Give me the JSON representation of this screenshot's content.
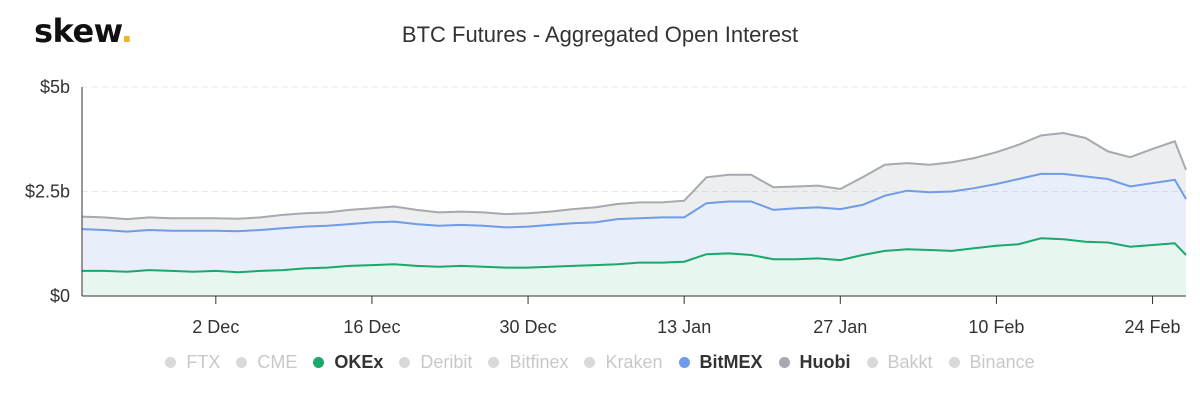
{
  "brand": {
    "name": "skew",
    "dot": "."
  },
  "colors": {
    "okex": "#1aa86b",
    "bitmex": "#6f9be8",
    "huobi": "#a6a9ad",
    "inactive": "#d9d9d9",
    "grid": "#e8e8e8",
    "axis": "#333333"
  },
  "chart_data": {
    "type": "area",
    "title": "BTC Futures - Aggregated Open Interest",
    "xlabel": "",
    "ylabel": "",
    "ylim": [
      0,
      5
    ],
    "y_ticks": [
      {
        "value": 0,
        "label": "$0"
      },
      {
        "value": 2.5,
        "label": "$2.5b"
      },
      {
        "value": 5,
        "label": "$5b"
      }
    ],
    "x_ticks": [
      "2 Dec",
      "16 Dec",
      "30 Dec",
      "13 Jan",
      "27 Jan",
      "10 Feb",
      "24 Feb"
    ],
    "x_start_date": "2019-11-20",
    "x_end_date": "2020-02-27",
    "stacked": true,
    "grid": true,
    "legend_position": "bottom",
    "legend": [
      {
        "name": "FTX",
        "active": false
      },
      {
        "name": "CME",
        "active": false
      },
      {
        "name": "OKEx",
        "active": true,
        "color_key": "okex"
      },
      {
        "name": "Deribit",
        "active": false
      },
      {
        "name": "Bitfinex",
        "active": false
      },
      {
        "name": "Kraken",
        "active": false
      },
      {
        "name": "BitMEX",
        "active": true,
        "color_key": "bitmex"
      },
      {
        "name": "Huobi",
        "active": true,
        "color_key": "huobi"
      },
      {
        "name": "Bakkt",
        "active": false
      },
      {
        "name": "Binance",
        "active": false
      }
    ],
    "series": [
      {
        "name": "OKEx",
        "x": [
          "2019-11-20",
          "2019-11-22",
          "2019-11-24",
          "2019-11-26",
          "2019-11-28",
          "2019-11-30",
          "2019-12-02",
          "2019-12-04",
          "2019-12-06",
          "2019-12-08",
          "2019-12-10",
          "2019-12-12",
          "2019-12-14",
          "2019-12-16",
          "2019-12-18",
          "2019-12-20",
          "2019-12-22",
          "2019-12-24",
          "2019-12-26",
          "2019-12-28",
          "2019-12-30",
          "2020-01-01",
          "2020-01-03",
          "2020-01-05",
          "2020-01-07",
          "2020-01-09",
          "2020-01-11",
          "2020-01-13",
          "2020-01-15",
          "2020-01-17",
          "2020-01-19",
          "2020-01-21",
          "2020-01-23",
          "2020-01-25",
          "2020-01-27",
          "2020-01-29",
          "2020-01-31",
          "2020-02-02",
          "2020-02-04",
          "2020-02-06",
          "2020-02-08",
          "2020-02-10",
          "2020-02-12",
          "2020-02-14",
          "2020-02-16",
          "2020-02-18",
          "2020-02-20",
          "2020-02-22",
          "2020-02-24",
          "2020-02-26",
          "2020-02-27"
        ],
        "values": [
          0.6,
          0.6,
          0.58,
          0.62,
          0.6,
          0.58,
          0.6,
          0.57,
          0.6,
          0.62,
          0.66,
          0.68,
          0.72,
          0.74,
          0.76,
          0.72,
          0.7,
          0.72,
          0.7,
          0.68,
          0.68,
          0.7,
          0.72,
          0.74,
          0.76,
          0.8,
          0.8,
          0.82,
          1.0,
          1.02,
          0.98,
          0.88,
          0.88,
          0.9,
          0.86,
          0.98,
          1.08,
          1.12,
          1.1,
          1.08,
          1.14,
          1.2,
          1.24,
          1.38,
          1.36,
          1.3,
          1.28,
          1.18,
          1.22,
          1.26,
          0.98
        ]
      },
      {
        "name": "BitMEX",
        "x": [
          "2019-11-20",
          "2019-11-22",
          "2019-11-24",
          "2019-11-26",
          "2019-11-28",
          "2019-11-30",
          "2019-12-02",
          "2019-12-04",
          "2019-12-06",
          "2019-12-08",
          "2019-12-10",
          "2019-12-12",
          "2019-12-14",
          "2019-12-16",
          "2019-12-18",
          "2019-12-20",
          "2019-12-22",
          "2019-12-24",
          "2019-12-26",
          "2019-12-28",
          "2019-12-30",
          "2020-01-01",
          "2020-01-03",
          "2020-01-05",
          "2020-01-07",
          "2020-01-09",
          "2020-01-11",
          "2020-01-13",
          "2020-01-15",
          "2020-01-17",
          "2020-01-19",
          "2020-01-21",
          "2020-01-23",
          "2020-01-25",
          "2020-01-27",
          "2020-01-29",
          "2020-01-31",
          "2020-02-02",
          "2020-02-04",
          "2020-02-06",
          "2020-02-08",
          "2020-02-10",
          "2020-02-12",
          "2020-02-14",
          "2020-02-16",
          "2020-02-18",
          "2020-02-20",
          "2020-02-22",
          "2020-02-24",
          "2020-02-26",
          "2020-02-27"
        ],
        "values": [
          1.0,
          0.98,
          0.96,
          0.96,
          0.96,
          0.98,
          0.96,
          0.98,
          0.98,
          1.0,
          1.0,
          1.0,
          1.0,
          1.02,
          1.02,
          1.0,
          0.98,
          0.98,
          0.98,
          0.96,
          0.98,
          1.0,
          1.02,
          1.02,
          1.08,
          1.06,
          1.08,
          1.06,
          1.22,
          1.24,
          1.28,
          1.18,
          1.22,
          1.22,
          1.22,
          1.2,
          1.32,
          1.4,
          1.38,
          1.42,
          1.44,
          1.48,
          1.56,
          1.54,
          1.56,
          1.56,
          1.52,
          1.44,
          1.48,
          1.52,
          1.34
        ]
      },
      {
        "name": "Huobi",
        "x": [
          "2019-11-20",
          "2019-11-22",
          "2019-11-24",
          "2019-11-26",
          "2019-11-28",
          "2019-11-30",
          "2019-12-02",
          "2019-12-04",
          "2019-12-06",
          "2019-12-08",
          "2019-12-10",
          "2019-12-12",
          "2019-12-14",
          "2019-12-16",
          "2019-12-18",
          "2019-12-20",
          "2019-12-22",
          "2019-12-24",
          "2019-12-26",
          "2019-12-28",
          "2019-12-30",
          "2020-01-01",
          "2020-01-03",
          "2020-01-05",
          "2020-01-07",
          "2020-01-09",
          "2020-01-11",
          "2020-01-13",
          "2020-01-15",
          "2020-01-17",
          "2020-01-19",
          "2020-01-21",
          "2020-01-23",
          "2020-01-25",
          "2020-01-27",
          "2020-01-29",
          "2020-01-31",
          "2020-02-02",
          "2020-02-04",
          "2020-02-06",
          "2020-02-08",
          "2020-02-10",
          "2020-02-12",
          "2020-02-14",
          "2020-02-16",
          "2020-02-18",
          "2020-02-20",
          "2020-02-22",
          "2020-02-24",
          "2020-02-26",
          "2020-02-27"
        ],
        "values": [
          0.3,
          0.3,
          0.3,
          0.3,
          0.3,
          0.3,
          0.3,
          0.3,
          0.3,
          0.32,
          0.32,
          0.32,
          0.34,
          0.34,
          0.36,
          0.34,
          0.32,
          0.32,
          0.32,
          0.32,
          0.32,
          0.32,
          0.34,
          0.36,
          0.36,
          0.38,
          0.36,
          0.4,
          0.62,
          0.64,
          0.64,
          0.54,
          0.52,
          0.52,
          0.48,
          0.66,
          0.74,
          0.66,
          0.66,
          0.7,
          0.72,
          0.76,
          0.82,
          0.92,
          0.98,
          0.92,
          0.66,
          0.7,
          0.82,
          0.92,
          0.7
        ]
      }
    ]
  }
}
